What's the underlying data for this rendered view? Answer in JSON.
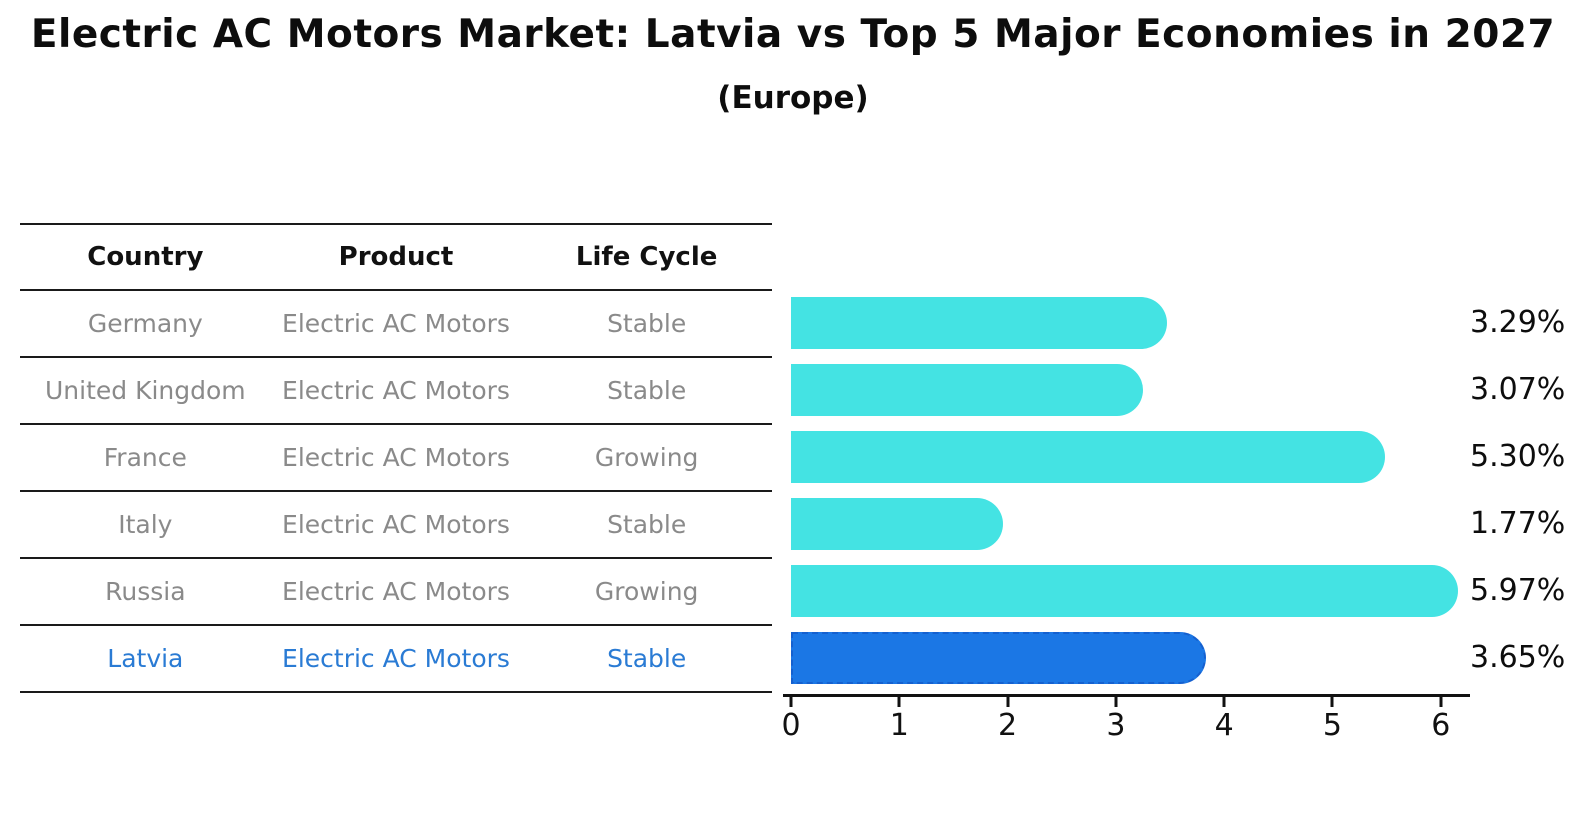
{
  "header": {
    "title": "Electric AC Motors Market: Latvia vs Top 5 Major Economies in 2027",
    "subtitle": "(Europe)"
  },
  "table": {
    "headers": [
      "Country",
      "Product",
      "Life Cycle"
    ],
    "rows": [
      {
        "country": "Germany",
        "product": "Electric AC Motors",
        "life_cycle": "Stable",
        "highlight": false
      },
      {
        "country": "United Kingdom",
        "product": "Electric AC Motors",
        "life_cycle": "Stable",
        "highlight": false
      },
      {
        "country": "France",
        "product": "Electric AC Motors",
        "life_cycle": "Growing",
        "highlight": false
      },
      {
        "country": "Italy",
        "product": "Electric AC Motors",
        "life_cycle": "Stable",
        "highlight": false
      },
      {
        "country": "Russia",
        "product": "Electric AC Motors",
        "life_cycle": "Growing",
        "highlight": false
      },
      {
        "country": "Latvia",
        "product": "Electric AC Motors",
        "life_cycle": "Stable",
        "highlight": true
      }
    ]
  },
  "chart_data": {
    "type": "bar",
    "orientation": "horizontal",
    "title": "Electric AC Motors Market: Latvia vs Top 5 Major Economies in 2027 (Europe)",
    "categories": [
      "Germany",
      "United Kingdom",
      "France",
      "Italy",
      "Russia",
      "Latvia"
    ],
    "values": [
      3.29,
      3.07,
      5.3,
      1.77,
      5.97,
      3.65
    ],
    "bar_labels": [
      "3.29%",
      "3.07%",
      "5.30%",
      "1.77%",
      "5.97%",
      "3.65%"
    ],
    "xlim": [
      0,
      6.27
    ],
    "xticks": [
      0,
      1,
      2,
      3,
      4,
      5,
      6
    ],
    "grid": false,
    "legend": "none",
    "highlight_index": 5,
    "colors": {
      "bar": "#44e3e3",
      "highlight_bar": "#1b77e5",
      "highlight_border": "#1560cf",
      "row_text": "#8a8a8a",
      "highlight_text": "#2a7bd4",
      "axis_text": "#111111"
    }
  }
}
